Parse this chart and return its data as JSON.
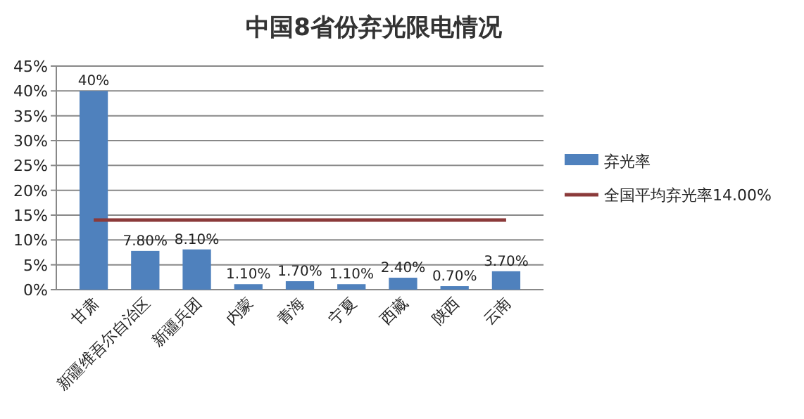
{
  "chart_data": {
    "type": "bar",
    "title": "中国8省份弃光限电情况",
    "categories": [
      "甘肃",
      "新疆维吾尔自治区",
      "新疆兵团",
      "内蒙",
      "青海",
      "宁夏",
      "西藏",
      "陕西",
      "云南"
    ],
    "series": [
      {
        "name": "弃光率",
        "color": "#4f81bd",
        "values": [
          40,
          7.8,
          8.1,
          1.1,
          1.7,
          1.1,
          2.4,
          0.7,
          3.7
        ],
        "value_labels": [
          "40%",
          "7.80%",
          "8.10%",
          "1.10%",
          "1.70%",
          "1.10%",
          "2.40%",
          "0.70%",
          "3.70%"
        ]
      },
      {
        "name": "全国平均弃光率14.00%",
        "type": "line",
        "color": "#8b3a3a",
        "values": [
          14,
          14,
          14,
          14,
          14,
          14,
          14,
          14,
          14
        ]
      }
    ],
    "ylim": [
      0,
      45
    ],
    "yticks": [
      {
        "value": 0,
        "label": "0%"
      },
      {
        "value": 5,
        "label": "5%"
      },
      {
        "value": 10,
        "label": "10%"
      },
      {
        "value": 15,
        "label": "15%"
      },
      {
        "value": 20,
        "label": "20%"
      },
      {
        "value": 25,
        "label": "25%"
      },
      {
        "value": 30,
        "label": "30%"
      },
      {
        "value": 35,
        "label": "35%"
      },
      {
        "value": 40,
        "label": "40%"
      },
      {
        "value": 45,
        "label": "45%"
      }
    ],
    "grid": "y",
    "legend": "right",
    "marker": "none",
    "line_style": "solid"
  }
}
